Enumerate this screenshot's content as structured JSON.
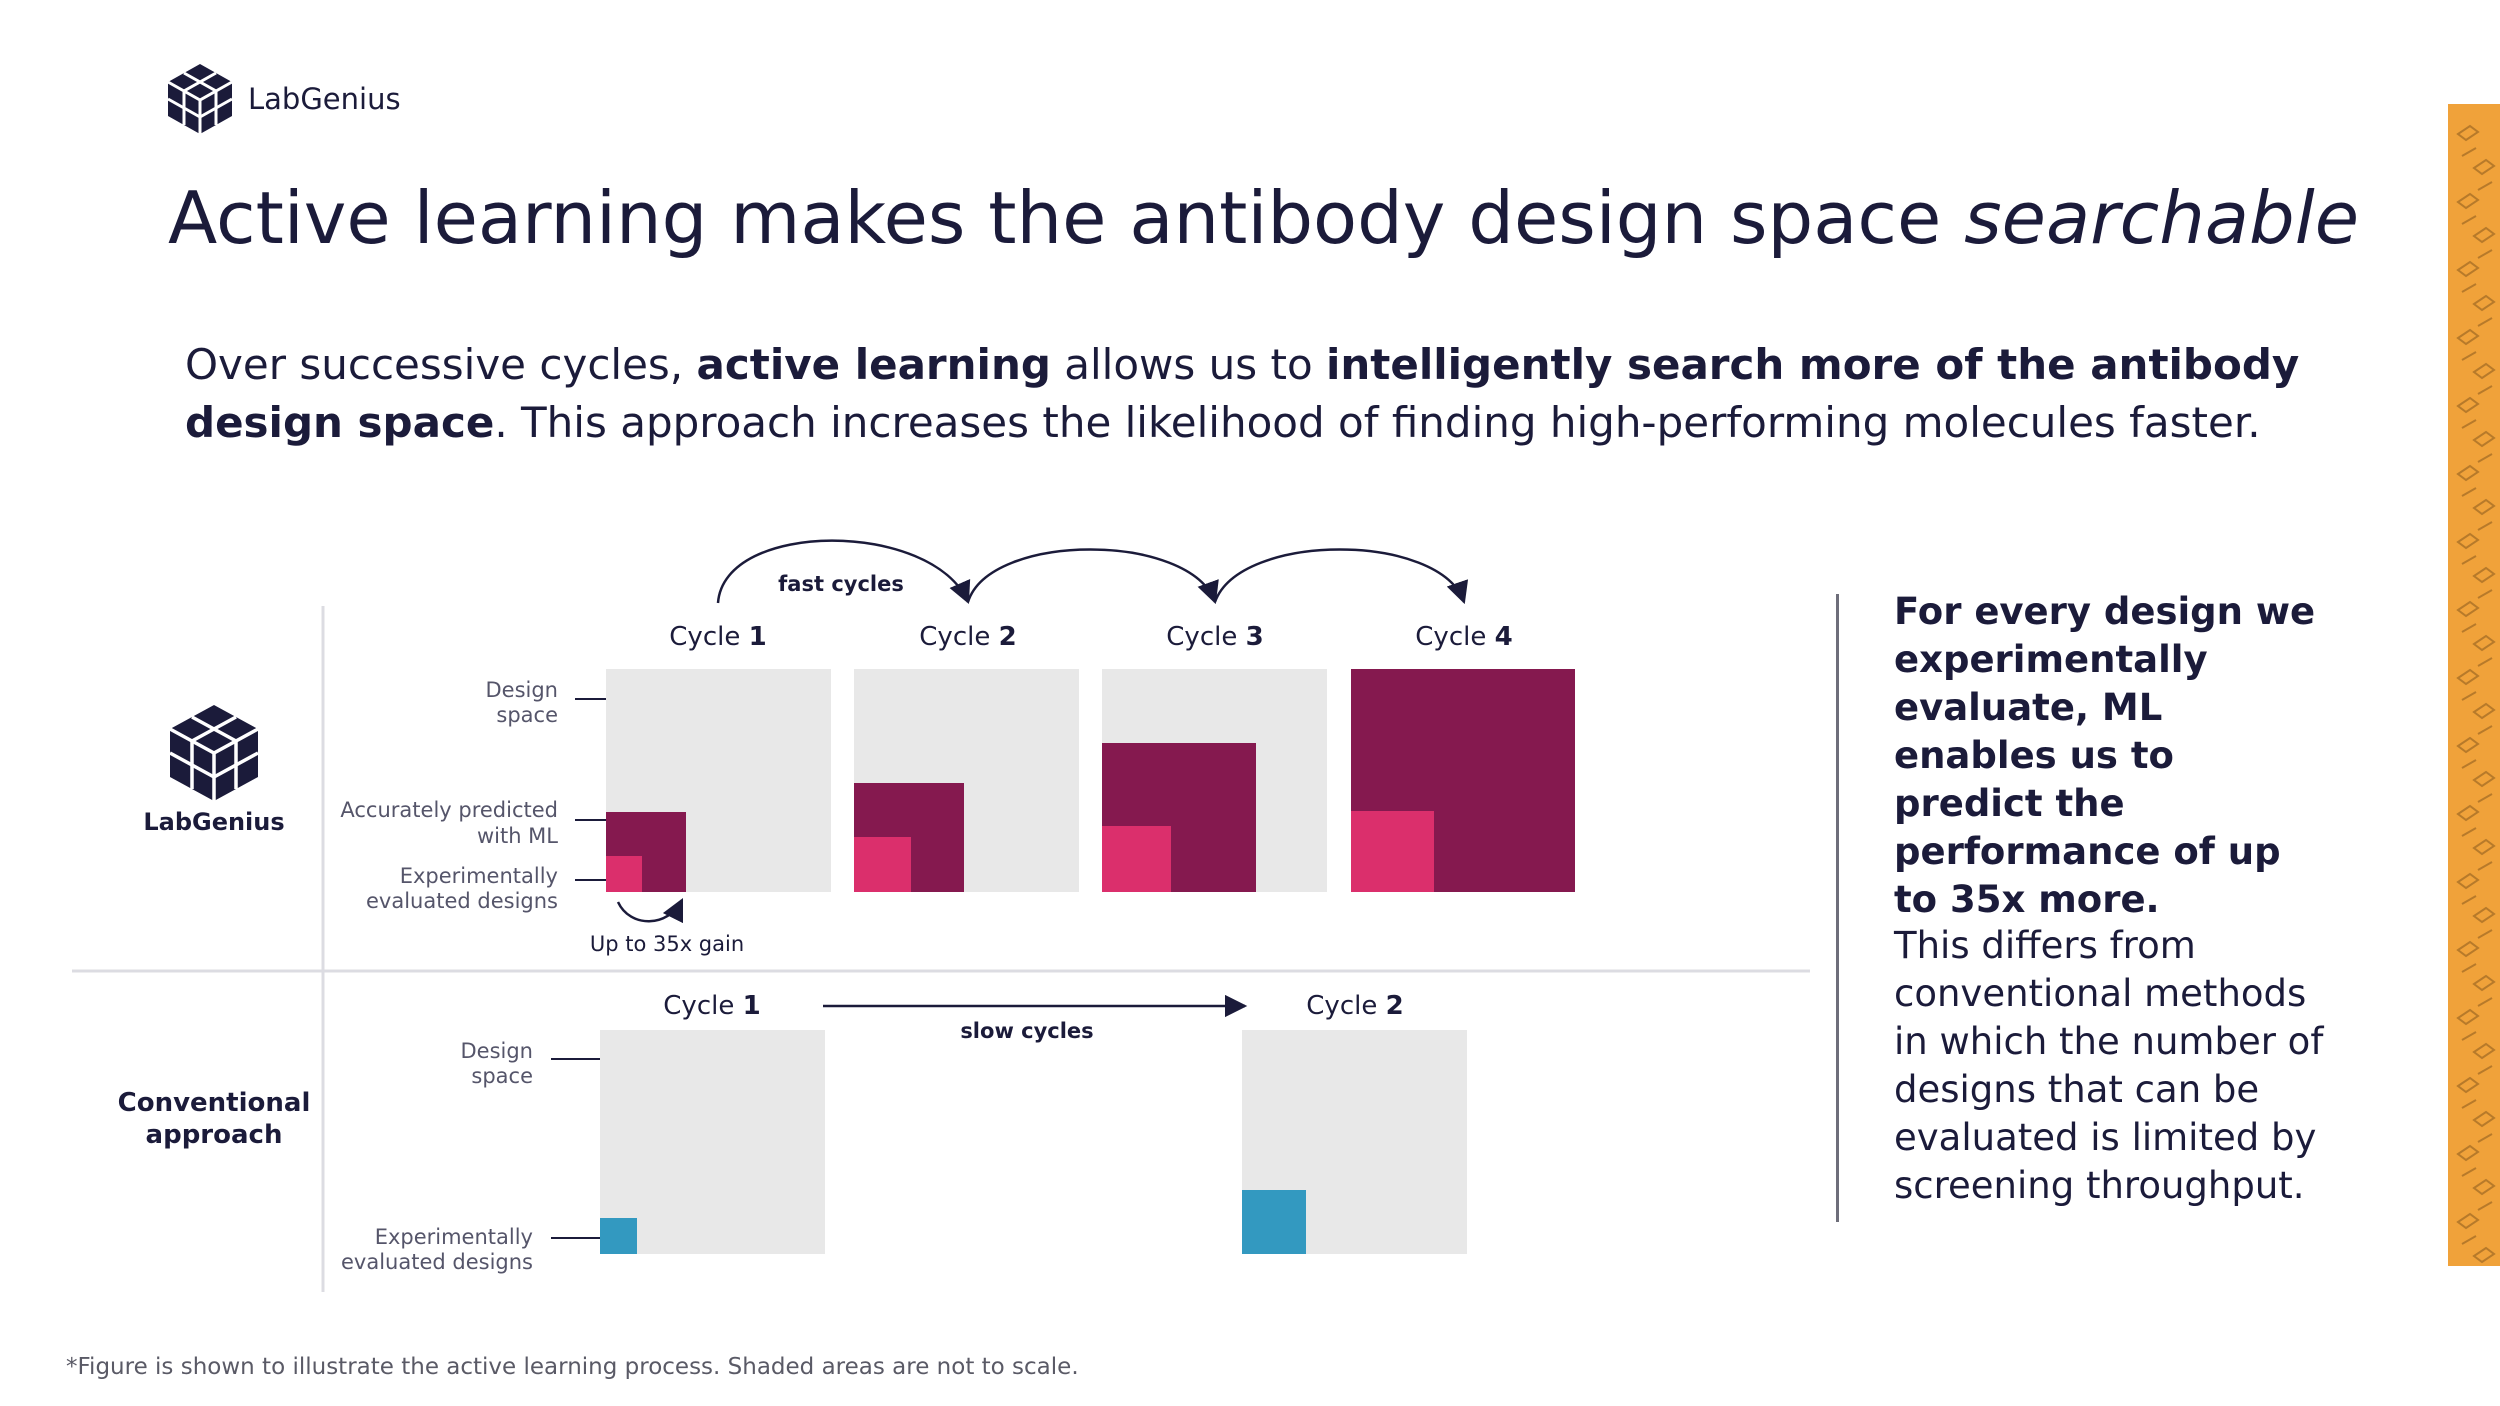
{
  "brand": {
    "name": "LabGenius"
  },
  "title": {
    "main": "Active learning makes the antibody design space ",
    "emphasis": "searchable"
  },
  "intro": {
    "p1": "Over successive cycles, ",
    "b1": "active learning",
    "p2": " allows us to ",
    "b2": "intelligently search more of the antibody design space",
    "p3": ". This approach increases the likelihood of finding high-performing molecules faster."
  },
  "diagram": {
    "fast_label": "fast cycles",
    "slow_label": "slow cycles",
    "cycle_word": "Cycle",
    "top_row": {
      "logo_label": "LabGenius",
      "cycles": [
        "1",
        "2",
        "3",
        "4"
      ],
      "design_space_l1": "Design",
      "design_space_l2": "space",
      "predicted_l1": "Accurately predicted",
      "predicted_l2": "with ML",
      "evaluated_l1": "Experimentally",
      "evaluated_l2": "evaluated designs",
      "gain": "Up to 35x gain"
    },
    "bottom_row": {
      "label_l1": "Conventional",
      "label_l2": "approach",
      "cycles": [
        "1",
        "2"
      ],
      "design_space_l1": "Design",
      "design_space_l2": "space",
      "evaluated_l1": "Experimentally",
      "evaluated_l2": "evaluated designs"
    },
    "colors": {
      "space": "#e8e8e8",
      "predicted": "#85194f",
      "evaluated": "#db2f6c",
      "conventional": "#3399c0",
      "ink": "#1b1b3a"
    }
  },
  "sidebar": {
    "bold_text": "For every design we experimentally evaluate, ML enables us to predict the performance of up to 35x more.",
    "body_text": "This differs from conventional methods in which the number of designs that can be evaluated is limited by screening throughput."
  },
  "footnote": "*Figure is shown to illustrate the active learning process. Shaded areas are not to scale."
}
